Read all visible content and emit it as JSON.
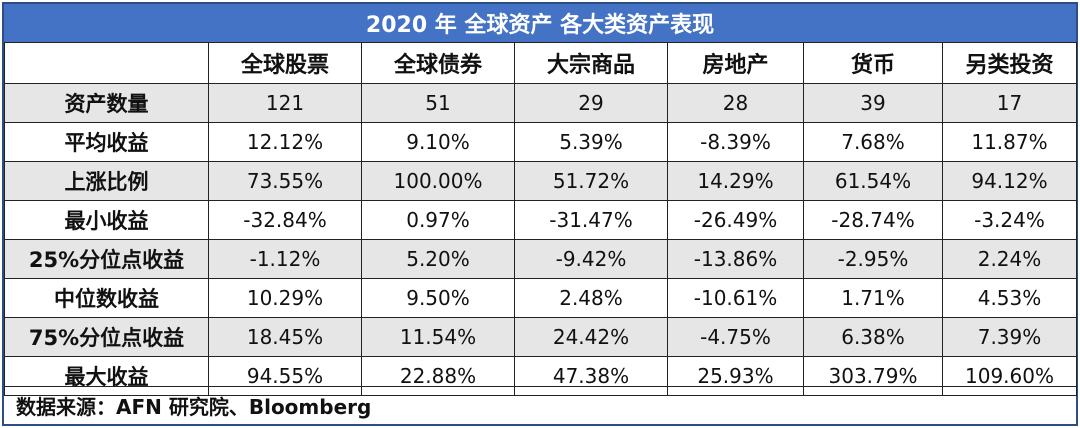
{
  "title": "2020 年  全球资产  各大类资产表现",
  "columns": [
    "全球股票",
    "全球债券",
    "大宗商品",
    "房地产",
    "货币",
    "另类投资"
  ],
  "rows": [
    {
      "label": "资产数量",
      "values": [
        "121",
        "51",
        "29",
        "28",
        "39",
        "17"
      ]
    },
    {
      "label": "平均收益",
      "values": [
        "12.12%",
        "9.10%",
        "5.39%",
        "-8.39%",
        "7.68%",
        "11.87%"
      ]
    },
    {
      "label": "上涨比例",
      "values": [
        "73.55%",
        "100.00%",
        "51.72%",
        "14.29%",
        "61.54%",
        "94.12%"
      ]
    },
    {
      "label": "最小收益",
      "values": [
        "-32.84%",
        "0.97%",
        "-31.47%",
        "-26.49%",
        "-28.74%",
        "-3.24%"
      ]
    },
    {
      "label": "25%分位点收益",
      "values": [
        "-1.12%",
        "5.20%",
        "-9.42%",
        "-13.86%",
        "-2.95%",
        "2.24%"
      ]
    },
    {
      "label": "中位数收益",
      "values": [
        "10.29%",
        "9.50%",
        "2.48%",
        "-10.61%",
        "1.71%",
        "4.53%"
      ]
    },
    {
      "label": "75%分位点收益",
      "values": [
        "18.45%",
        "11.54%",
        "24.42%",
        "-4.75%",
        "6.38%",
        "7.39%"
      ]
    },
    {
      "label": "最大收益",
      "values": [
        "94.55%",
        "22.88%",
        "47.38%",
        "25.93%",
        "303.79%",
        "109.60%"
      ]
    }
  ],
  "source": "数据来源：AFN 研究院、Bloomberg",
  "colors": {
    "title_bg": "#4472c4",
    "shade_bg": "#e7e6e6",
    "border": "#2b4f83"
  }
}
